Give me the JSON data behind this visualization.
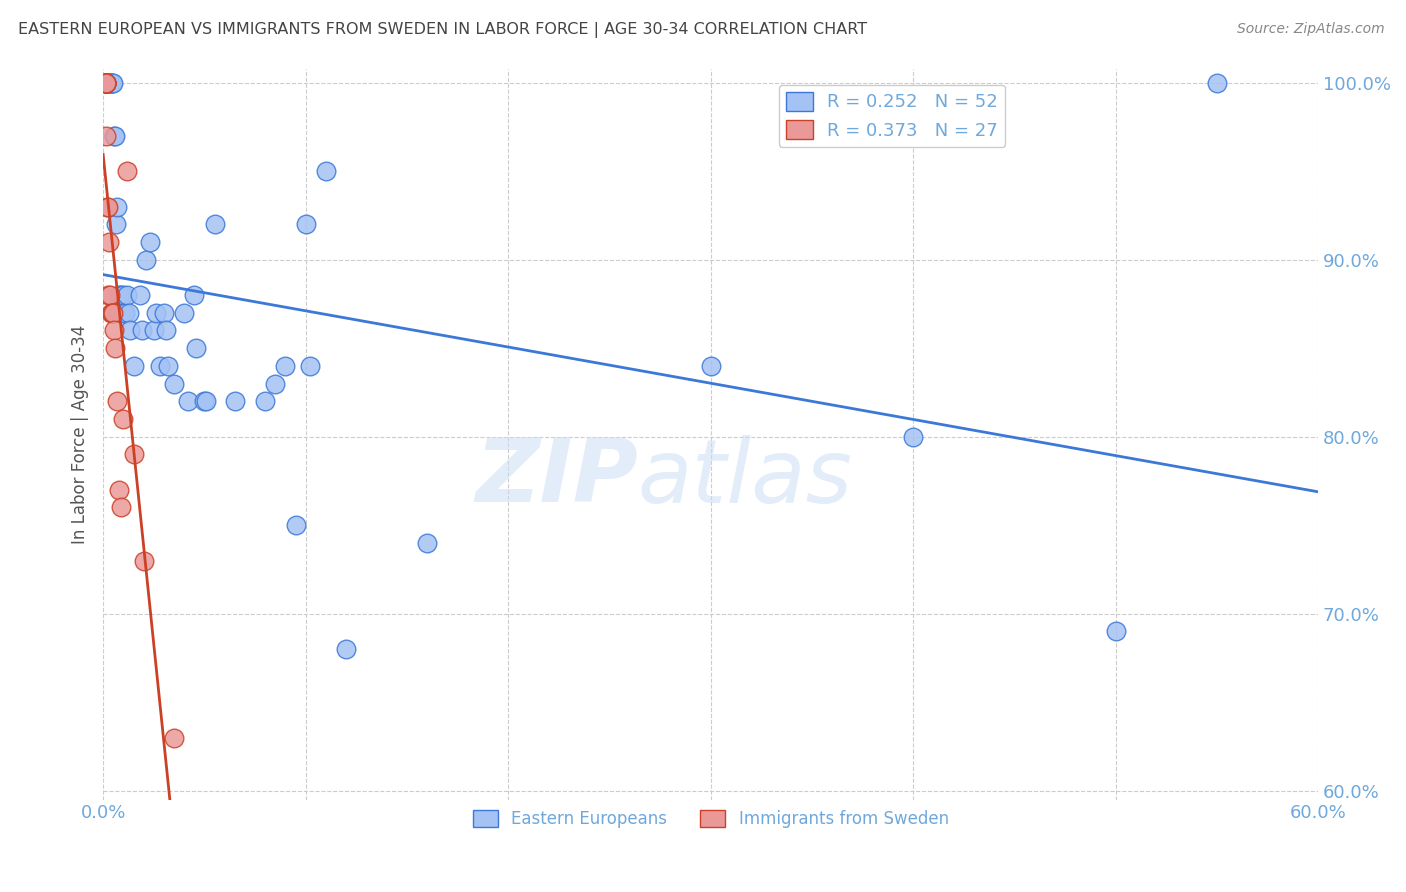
{
  "title": "EASTERN EUROPEAN VS IMMIGRANTS FROM SWEDEN IN LABOR FORCE | AGE 30-34 CORRELATION CHART",
  "source": "Source: ZipAtlas.com",
  "ylabel": "In Labor Force | Age 30-34",
  "xlim": [
    0.0,
    60.0
  ],
  "ylim": [
    0.595,
    1.008
  ],
  "yticks": [
    0.6,
    0.7,
    0.8,
    0.9,
    1.0
  ],
  "ytick_labels": [
    "60.0%",
    "70.0%",
    "80.0%",
    "90.0%",
    "100.0%"
  ],
  "xticks": [
    0.0,
    10.0,
    20.0,
    30.0,
    40.0,
    50.0,
    60.0
  ],
  "xtick_labels": [
    "0.0%",
    "",
    "",
    "",
    "",
    "",
    "60.0%"
  ],
  "blue_R": 0.252,
  "blue_N": 52,
  "pink_R": 0.373,
  "pink_N": 27,
  "blue_color": "#a4c2f4",
  "pink_color": "#ea9999",
  "blue_line_color": "#3c78d8",
  "pink_line_color": "#cc4125",
  "title_color": "#444444",
  "axis_color": "#6fa8dc",
  "grid_color": "#cccccc",
  "watermark_left": "ZIP",
  "watermark_right": "atlas",
  "blue_x": [
    0.2,
    0.3,
    0.3,
    0.4,
    0.4,
    0.45,
    0.5,
    0.55,
    0.6,
    0.65,
    0.7,
    0.8,
    0.9,
    1.0,
    1.0,
    1.1,
    1.2,
    1.3,
    1.35,
    1.5,
    1.8,
    1.9,
    2.1,
    2.3,
    2.5,
    2.6,
    2.8,
    3.0,
    3.1,
    3.2,
    3.5,
    4.0,
    4.2,
    4.5,
    4.6,
    5.0,
    5.1,
    5.5,
    6.5,
    8.0,
    8.5,
    9.0,
    9.5,
    10.0,
    10.2,
    11.0,
    12.0,
    16.0,
    30.0,
    40.0,
    50.0,
    55.0
  ],
  "blue_y": [
    1.0,
    1.0,
    1.0,
    1.0,
    1.0,
    1.0,
    1.0,
    0.97,
    0.97,
    0.92,
    0.93,
    0.88,
    0.88,
    0.88,
    0.87,
    0.87,
    0.88,
    0.87,
    0.86,
    0.84,
    0.88,
    0.86,
    0.9,
    0.91,
    0.86,
    0.87,
    0.84,
    0.87,
    0.86,
    0.84,
    0.83,
    0.87,
    0.82,
    0.88,
    0.85,
    0.82,
    0.82,
    0.92,
    0.82,
    0.82,
    0.83,
    0.84,
    0.75,
    0.92,
    0.84,
    0.95,
    0.68,
    0.74,
    0.84,
    0.8,
    0.69,
    1.0
  ],
  "pink_x": [
    0.1,
    0.12,
    0.12,
    0.13,
    0.13,
    0.13,
    0.14,
    0.14,
    0.15,
    0.2,
    0.22,
    0.25,
    0.3,
    0.32,
    0.4,
    0.42,
    0.5,
    0.52,
    0.6,
    0.7,
    0.8,
    0.9,
    1.0,
    1.2,
    1.5,
    2.0,
    3.5
  ],
  "pink_y": [
    1.0,
    1.0,
    1.0,
    1.0,
    1.0,
    1.0,
    1.0,
    1.0,
    0.97,
    0.93,
    0.93,
    0.88,
    0.91,
    0.88,
    0.87,
    0.87,
    0.87,
    0.86,
    0.85,
    0.82,
    0.77,
    0.76,
    0.81,
    0.95,
    0.79,
    0.73,
    0.63
  ]
}
